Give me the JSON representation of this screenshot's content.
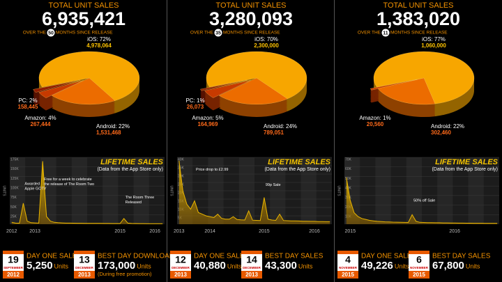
{
  "panels": [
    {
      "heading": "TOTAL UNIT SALES",
      "total": "6,935,421",
      "months_pre": "OVER THE",
      "months": "50",
      "months_post": "MONTHS SINCE RELEASE",
      "stats": [
        {
          "day": "19",
          "month": "SEPTEMBER",
          "year": "2012",
          "label": "DAY ONE SALES",
          "value": "5,250",
          "unit": "Units"
        },
        {
          "day": "13",
          "month": "DECEMBER",
          "year": "2013",
          "label": "BEST DAY DOWNLOADS",
          "value": "173,000",
          "unit": "Units",
          "note": "(During free promotion)"
        }
      ]
    },
    {
      "heading": "TOTAL UNIT SALES",
      "total": "3,280,093",
      "months_pre": "OVER THE",
      "months": "35",
      "months_post": "MONTHS SINCE RELEASE",
      "stats": [
        {
          "day": "12",
          "month": "DECEMBER",
          "year": "2013",
          "label": "DAY ONE SALES",
          "value": "40,880",
          "unit": "Units"
        },
        {
          "day": "14",
          "month": "DECEMBER",
          "year": "2013",
          "label": "BEST DAY SALES",
          "value": "43,300",
          "unit": "Units"
        }
      ]
    },
    {
      "heading": "TOTAL UNIT SALES",
      "total": "1,383,020",
      "months_pre": "OVER THE",
      "months": "11",
      "months_post": "MONTHS SINCE RELEASE",
      "stats": [
        {
          "day": "4",
          "month": "NOVEMBER",
          "year": "2015",
          "label": "DAY ONE SALES",
          "value": "49,226",
          "unit": "Units"
        },
        {
          "day": "6",
          "month": "NOVEMBER",
          "year": "2015",
          "label": "BEST DAY SALES",
          "value": "67,800",
          "unit": "Units"
        }
      ]
    }
  ],
  "chart_data": [
    {
      "type": "pie",
      "labels": [
        "iOS: 72%",
        "Android: 22%",
        "Amazon: 4%",
        "PC: 2%"
      ],
      "values": [
        72,
        22,
        4,
        2
      ],
      "units": [
        4978064,
        1531468,
        267444,
        158445
      ],
      "unit_labels": [
        "4,978,064",
        "1,531,468",
        "267,444",
        "158,445"
      ],
      "colors": [
        "#f7a600",
        "#ec6c00",
        "#c73a00",
        "#8f1c00"
      ]
    },
    {
      "type": "line",
      "title": "LIFETIME SALES",
      "subtitle": "(Data from the App Store only)",
      "y_label": "UNITS",
      "color": "#e8b400",
      "categories": [
        "2012",
        null,
        null,
        null,
        null,
        null,
        "2013",
        null,
        null,
        null,
        null,
        null,
        null,
        null,
        null,
        null,
        null,
        null,
        null,
        null,
        null,
        null,
        null,
        null,
        null,
        null,
        null,
        null,
        "2015",
        null,
        null,
        null,
        null,
        null,
        null,
        null,
        null,
        "2016",
        null,
        null
      ],
      "values": [
        5000,
        3000,
        2500,
        55000,
        8000,
        4000,
        3500,
        3000,
        165000,
        20000,
        8000,
        5000,
        4000,
        3500,
        3000,
        3000,
        2800,
        2500,
        2500,
        2400,
        2300,
        2200,
        2200,
        2100,
        2000,
        2000,
        1900,
        1900,
        1800,
        15000,
        3000,
        2000,
        1800,
        1700,
        1600,
        1500,
        1500,
        1400,
        1400,
        1300
      ],
      "ylim": [
        0,
        175000
      ],
      "yticks": [
        {
          "value": 25000,
          "label": "25K"
        },
        {
          "value": 50000,
          "label": "50K"
        },
        {
          "value": 75000,
          "label": "75K"
        },
        {
          "value": 100000,
          "label": "100K"
        },
        {
          "value": 125000,
          "label": "125K"
        },
        {
          "value": 150000,
          "label": "150K"
        },
        {
          "value": 175000,
          "label": "175K"
        }
      ],
      "annotations": [
        [
          "Awarded",
          "Apple GOTY"
        ],
        [
          "Free for a week to celebrate",
          "the release of The Room Two"
        ],
        [
          "The Room Three",
          "Released"
        ]
      ]
    },
    {
      "type": "pie",
      "labels": [
        "iOS: 70%",
        "Android: 24%",
        "Amazon: 5%",
        "PC: 1%"
      ],
      "values": [
        70,
        24,
        5,
        1
      ],
      "units": [
        2300000,
        789051,
        164969,
        26073
      ],
      "unit_labels": [
        "2,300,000",
        "789,051",
        "164,969",
        "26,073"
      ],
      "colors": [
        "#f7a600",
        "#ec6c00",
        "#c73a00",
        "#8f1c00"
      ]
    },
    {
      "type": "line",
      "title": "LIFETIME SALES",
      "subtitle": "(Data from the App Store only)",
      "y_label": "UNITS",
      "color": "#e8b400",
      "categories": [
        "2013",
        null,
        null,
        null,
        null,
        null,
        null,
        null,
        "2014",
        null,
        null,
        null,
        null,
        null,
        null,
        null,
        null,
        null,
        null,
        null,
        null,
        null,
        "2015",
        null,
        null,
        null,
        null,
        null,
        null,
        null,
        null,
        null,
        null,
        null,
        null,
        "2016",
        null,
        null,
        null,
        null
      ],
      "values": [
        38000,
        20000,
        12000,
        9000,
        14000,
        7000,
        6000,
        5000,
        4500,
        4000,
        6000,
        3500,
        3000,
        3000,
        4500,
        2800,
        2600,
        2500,
        8000,
        2400,
        2300,
        2200,
        16000,
        3000,
        2500,
        2300,
        6000,
        2200,
        2100,
        2000,
        2000,
        1900,
        1800,
        1800,
        1700,
        1700,
        1600,
        1600,
        1500,
        1500
      ],
      "ylim": [
        0,
        40000
      ],
      "yticks": [
        {
          "value": 5000,
          "label": "5K"
        },
        {
          "value": 10000,
          "label": "10K"
        },
        {
          "value": 15000,
          "label": "15K"
        },
        {
          "value": 20000,
          "label": "20K"
        },
        {
          "value": 25000,
          "label": "25K"
        },
        {
          "value": 30000,
          "label": "30K"
        },
        {
          "value": 35000,
          "label": "35K"
        },
        {
          "value": 40000,
          "label": "40K"
        }
      ],
      "annotations": [
        [
          "Price drop to £2.99"
        ],
        [
          "99p Sale"
        ]
      ]
    },
    {
      "type": "pie",
      "labels": [
        "iOS: 77%",
        "Android: 22%",
        "Amazon: 1%"
      ],
      "values": [
        77,
        22,
        1
      ],
      "units": [
        1060000,
        302460,
        20560
      ],
      "unit_labels": [
        "1,060,000",
        "302,460",
        "20,560"
      ],
      "colors": [
        "#f7a600",
        "#ec6c00",
        "#c73a00"
      ]
    },
    {
      "type": "line",
      "title": "LIFETIME SALES",
      "subtitle": "(Data from the App Store only)",
      "y_label": "UNITS",
      "color": "#e8b400",
      "categories": [
        null,
        "2015",
        null,
        null,
        null,
        null,
        null,
        null,
        null,
        null,
        null,
        null,
        null,
        null,
        null,
        null,
        null,
        null,
        null,
        null,
        null,
        null,
        null,
        null,
        null,
        null,
        null,
        null,
        "2016",
        null,
        null,
        null,
        null,
        null,
        null,
        null,
        null,
        null,
        null,
        null
      ],
      "values": [
        49000,
        25000,
        12000,
        8000,
        6000,
        5000,
        4000,
        3500,
        3000,
        2800,
        2500,
        2400,
        2200,
        2100,
        2000,
        1900,
        1800,
        10000,
        3000,
        2000,
        1800,
        1700,
        1600,
        1500,
        1500,
        1400,
        1400,
        1300,
        1300,
        1200,
        1200,
        1100,
        1100,
        1000,
        1000,
        1000,
        900,
        900,
        900,
        900
      ],
      "ylim": [
        0,
        70000
      ],
      "yticks": [
        {
          "value": 10000,
          "label": "10K"
        },
        {
          "value": 20000,
          "label": "20K"
        },
        {
          "value": 30000,
          "label": "30K"
        },
        {
          "value": 40000,
          "label": "40K"
        },
        {
          "value": 50000,
          "label": "50K"
        },
        {
          "value": 60000,
          "label": "60K"
        },
        {
          "value": 70000,
          "label": "70K"
        }
      ],
      "annotations": [
        [
          "50% off Sale"
        ]
      ]
    }
  ]
}
